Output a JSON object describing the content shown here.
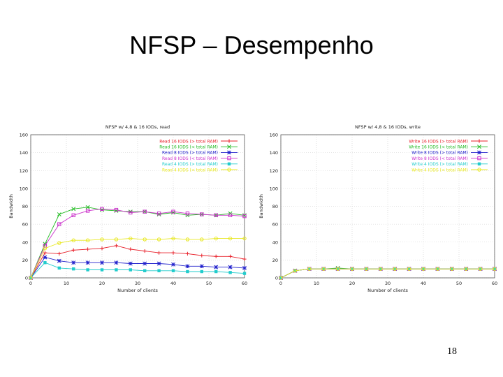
{
  "slide": {
    "title": "NFSP – Desempenho",
    "page_number": "18"
  },
  "chart_data": [
    {
      "type": "line",
      "title": "NFSP w/ 4,8 & 16 IODs, read",
      "xlabel": "Number of clients",
      "ylabel": "Bandwidth",
      "xlim": [
        0,
        60
      ],
      "ylim": [
        0,
        160
      ],
      "xticks": [
        0,
        10,
        20,
        30,
        40,
        50,
        60
      ],
      "yticks": [
        0,
        20,
        40,
        60,
        80,
        100,
        120,
        140,
        160
      ],
      "grid": true,
      "legend_position": "top-right",
      "x": [
        0,
        4,
        8,
        12,
        16,
        20,
        24,
        28,
        32,
        36,
        40,
        44,
        48,
        52,
        56,
        60
      ],
      "series": [
        {
          "name": "Read 16 IODS (> total RAM)",
          "color": "#e8202a",
          "marker": "+",
          "values": [
            0,
            28,
            27,
            31,
            32,
            33,
            36,
            32,
            30,
            28,
            28,
            27,
            25,
            24,
            24,
            21
          ]
        },
        {
          "name": "Read 16 IODS (< total RAM)",
          "color": "#22bb22",
          "marker": "x",
          "values": [
            0,
            38,
            71,
            77,
            79,
            76,
            75,
            74,
            74,
            71,
            73,
            70,
            71,
            70,
            72,
            70
          ]
        },
        {
          "name": "Read 8 IODS (> total RAM)",
          "color": "#2222cc",
          "marker": "*",
          "values": [
            0,
            23,
            19,
            17,
            17,
            17,
            17,
            16,
            16,
            16,
            15,
            13,
            13,
            12,
            12,
            11
          ]
        },
        {
          "name": "Read 8 IODS (< total RAM)",
          "color": "#cc33cc",
          "marker": "square",
          "values": [
            0,
            36,
            60,
            70,
            75,
            77,
            76,
            73,
            74,
            72,
            74,
            72,
            71,
            70,
            70,
            69
          ]
        },
        {
          "name": "Read 4 IODS (> total RAM)",
          "color": "#22cccc",
          "marker": "filled-square",
          "values": [
            0,
            17,
            11,
            10,
            9,
            9,
            9,
            9,
            8,
            8,
            8,
            7,
            7,
            7,
            6,
            5
          ]
        },
        {
          "name": "Read 4 IODS (< total RAM)",
          "color": "#e8e820",
          "marker": "circle",
          "values": [
            0,
            33,
            39,
            42,
            42,
            43,
            43,
            44,
            43,
            43,
            44,
            43,
            43,
            44,
            44,
            44
          ]
        }
      ]
    },
    {
      "type": "line",
      "title": "NFSP w/ 4,8 & 16 IODs, write",
      "xlabel": "Number of clients",
      "ylabel": "Bandwidth",
      "xlim": [
        0,
        60
      ],
      "ylim": [
        0,
        160
      ],
      "xticks": [
        0,
        10,
        20,
        30,
        40,
        50,
        60
      ],
      "yticks": [
        0,
        20,
        40,
        60,
        80,
        100,
        120,
        140,
        160
      ],
      "grid": true,
      "legend_position": "top-right",
      "x": [
        0,
        4,
        8,
        12,
        16,
        20,
        24,
        28,
        32,
        36,
        40,
        44,
        48,
        52,
        56,
        60
      ],
      "series": [
        {
          "name": "Write 16 IODS (> total RAM)",
          "color": "#e8202a",
          "marker": "+",
          "values": [
            0,
            8,
            10,
            10,
            10,
            10,
            10,
            10,
            10,
            10,
            10,
            10,
            10,
            10,
            10,
            10
          ]
        },
        {
          "name": "Write 16 IODS (< total RAM)",
          "color": "#22bb22",
          "marker": "x",
          "values": [
            0,
            8,
            10,
            10,
            11,
            10,
            10,
            10,
            10,
            10,
            10,
            10,
            10,
            10,
            10,
            10
          ]
        },
        {
          "name": "Write 8 IODS (> total RAM)",
          "color": "#2222cc",
          "marker": "*",
          "values": [
            0,
            8,
            10,
            10,
            10,
            10,
            10,
            10,
            10,
            10,
            10,
            10,
            10,
            10,
            10,
            10
          ]
        },
        {
          "name": "Write 8 IODS (< total RAM)",
          "color": "#cc33cc",
          "marker": "square",
          "values": [
            0,
            8,
            10,
            10,
            10,
            10,
            10,
            10,
            10,
            10,
            10,
            10,
            10,
            10,
            10,
            10
          ]
        },
        {
          "name": "Write 4 IODS (> total RAM)",
          "color": "#22cccc",
          "marker": "filled-square",
          "values": [
            0,
            8,
            10,
            10,
            10,
            10,
            10,
            10,
            10,
            10,
            10,
            10,
            10,
            10,
            10,
            10
          ]
        },
        {
          "name": "Write 4 IODS (< total RAM)",
          "color": "#e8e820",
          "marker": "circle",
          "values": [
            0,
            8,
            10,
            10,
            10,
            10,
            10,
            10,
            10,
            10,
            10,
            10,
            10,
            10,
            10,
            10
          ]
        }
      ]
    }
  ]
}
